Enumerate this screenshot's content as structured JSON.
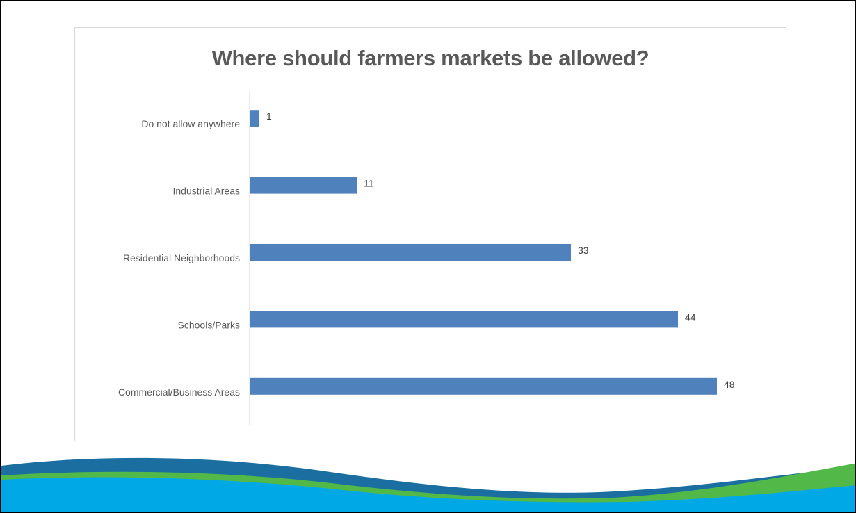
{
  "chart_data": {
    "type": "bar",
    "orientation": "horizontal",
    "title": "Where should farmers markets be allowed?",
    "categories": [
      "Do not allow anywhere",
      "Industrial Areas",
      "Residential Neighborhoods",
      "Schools/Parks",
      "Commercial/Business Areas"
    ],
    "values": [
      1,
      11,
      33,
      44,
      48
    ],
    "data_labels": [
      "1",
      "11",
      "33",
      "44",
      "48"
    ],
    "bar_color": "#4f81bd",
    "xlim": [
      0,
      50
    ],
    "grid": false,
    "legend": "none",
    "xlabel": "",
    "ylabel": ""
  },
  "decoration": {
    "wave_colors": [
      "#00a9e6",
      "#52b848",
      "#1a6fa0",
      "#2a5d8a"
    ]
  }
}
